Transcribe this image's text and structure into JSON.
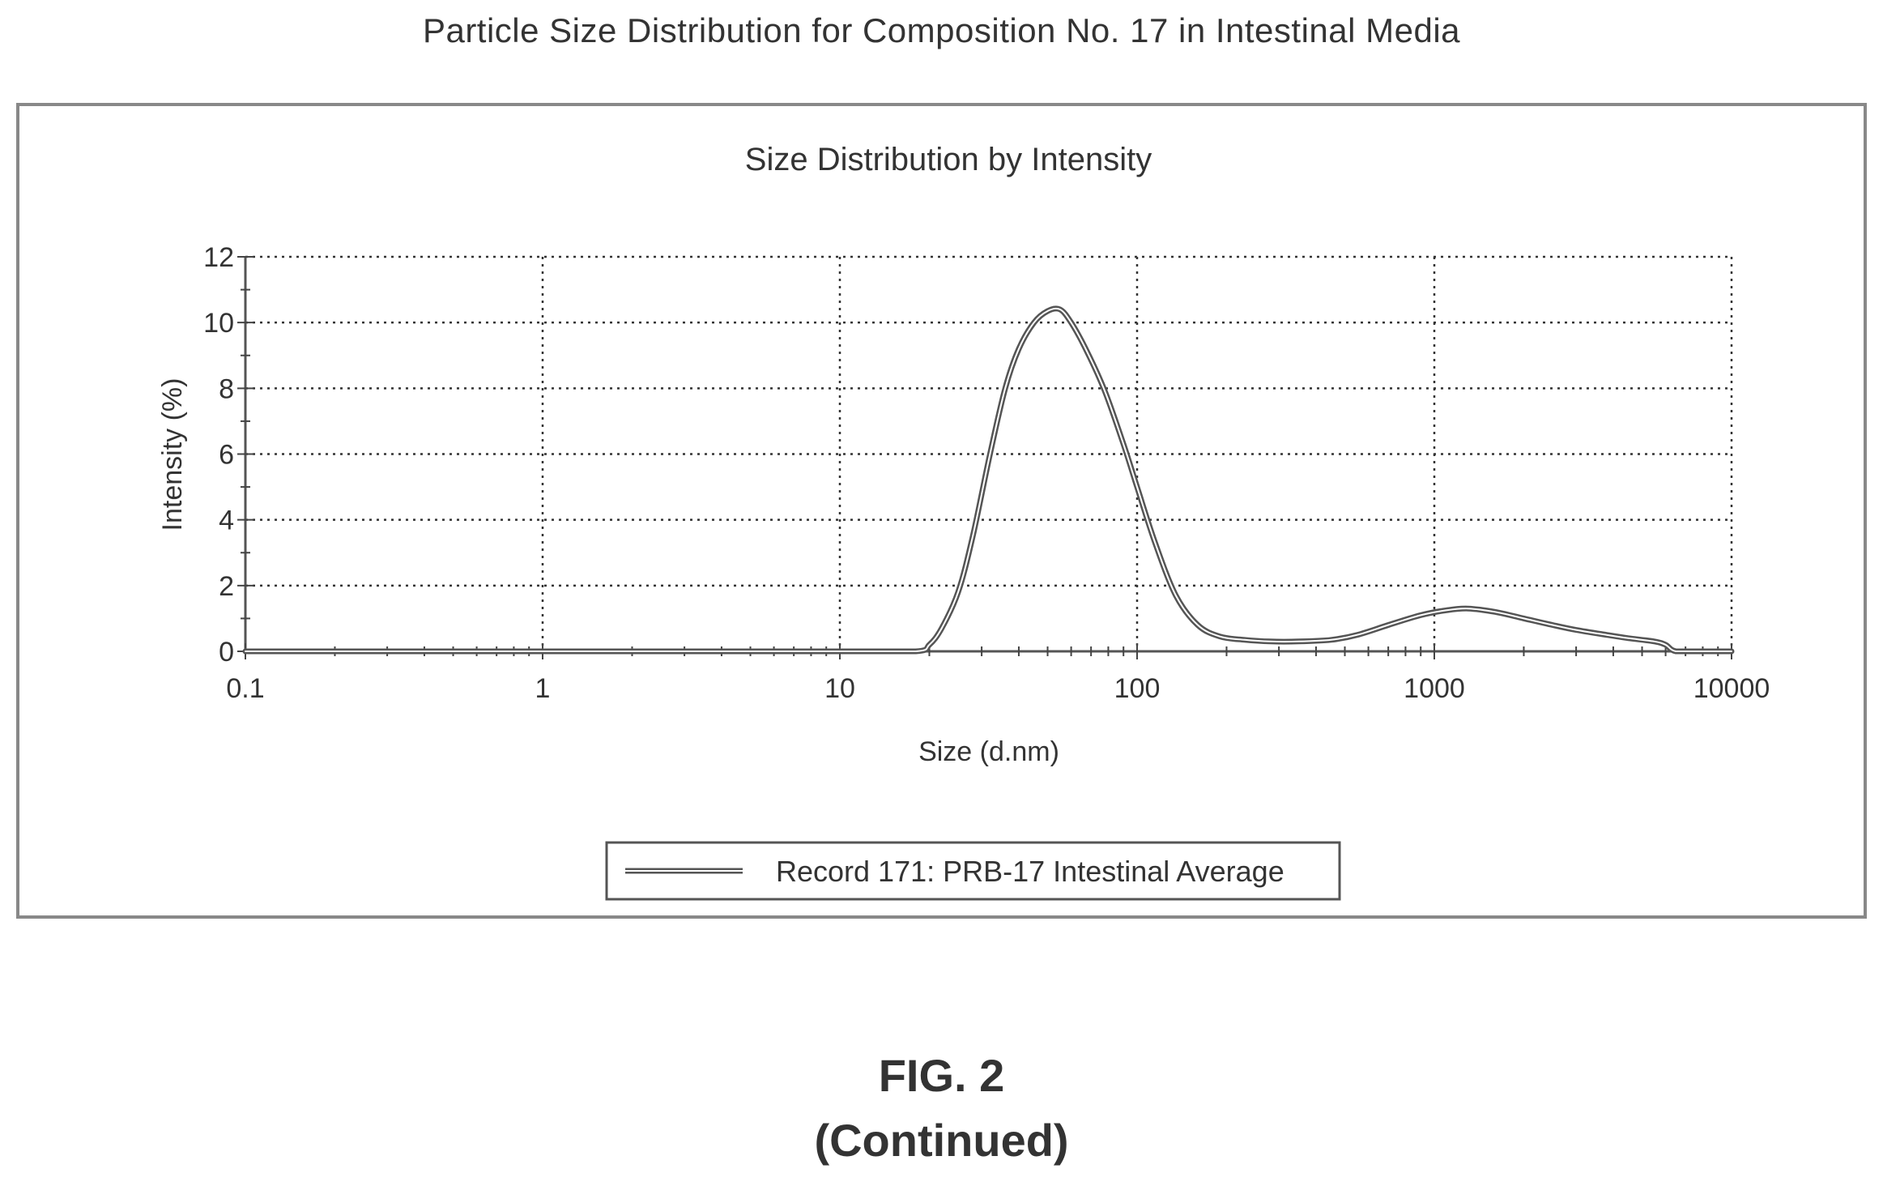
{
  "page": {
    "title": "Particle Size Distribution for Composition No. 17 in Intestinal Media",
    "figure_label": "FIG. 2",
    "figure_continued": "(Continued)"
  },
  "chart_data": {
    "type": "line",
    "title": "Size Distribution by Intensity",
    "xlabel": "Size (d.nm)",
    "ylabel": "Intensity (%)",
    "x_scale": "log",
    "xlim": [
      0.1,
      10000
    ],
    "ylim": [
      0,
      12
    ],
    "x_ticks": [
      0.1,
      1,
      10,
      100,
      1000,
      10000
    ],
    "x_tick_labels": [
      "0.1",
      "1",
      "10",
      "100",
      "1000",
      "10000"
    ],
    "y_ticks": [
      0,
      2,
      4,
      6,
      8,
      10,
      12
    ],
    "y_tick_labels": [
      "0",
      "2",
      "4",
      "6",
      "8",
      "10",
      "12"
    ],
    "grid": true,
    "legend_position": "bottom-center",
    "line_color": "#555555",
    "series": [
      {
        "name": "Record 171: PRB-17 Intestinal Average",
        "x": [
          0.1,
          1,
          10,
          18,
          20,
          22,
          25,
          28,
          32,
          36,
          40,
          45,
          50,
          55,
          60,
          68,
          78,
          90,
          100,
          115,
          135,
          160,
          190,
          230,
          280,
          350,
          450,
          550,
          700,
          900,
          1100,
          1300,
          1600,
          2000,
          2500,
          3000,
          3800,
          4500,
          5500,
          6000,
          6500,
          8000,
          10000
        ],
        "y": [
          0,
          0,
          0,
          0,
          0.2,
          0.7,
          1.8,
          3.5,
          6.0,
          8.0,
          9.2,
          10.0,
          10.35,
          10.4,
          10.0,
          9.1,
          7.9,
          6.3,
          5.0,
          3.3,
          1.7,
          0.8,
          0.45,
          0.35,
          0.3,
          0.3,
          0.35,
          0.5,
          0.8,
          1.1,
          1.25,
          1.3,
          1.2,
          1.0,
          0.8,
          0.65,
          0.5,
          0.4,
          0.3,
          0.2,
          0,
          0,
          0
        ]
      }
    ]
  }
}
